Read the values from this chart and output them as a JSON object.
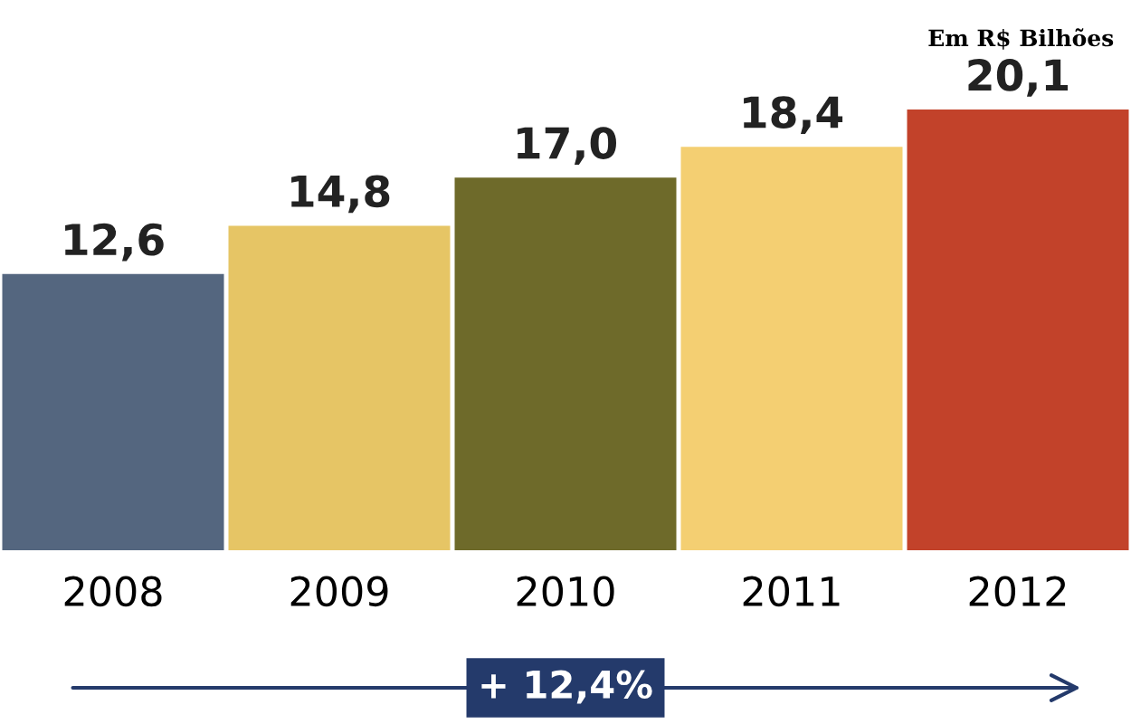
{
  "chart_data": {
    "type": "bar",
    "categories": [
      "2008",
      "2009",
      "2010",
      "2011",
      "2012"
    ],
    "values": [
      12.6,
      14.8,
      17.0,
      18.4,
      20.1
    ],
    "colors": [
      "#54667f",
      "#e6c565",
      "#6e6a2a",
      "#f4cf72",
      "#c2422a"
    ],
    "value_labels": [
      "12,6",
      "14,8",
      "17,0",
      "18,4",
      "20,1"
    ],
    "annotations": [
      "Em R$ Bilhões",
      "+ 12,4%"
    ],
    "grid": false,
    "legend": false
  }
}
